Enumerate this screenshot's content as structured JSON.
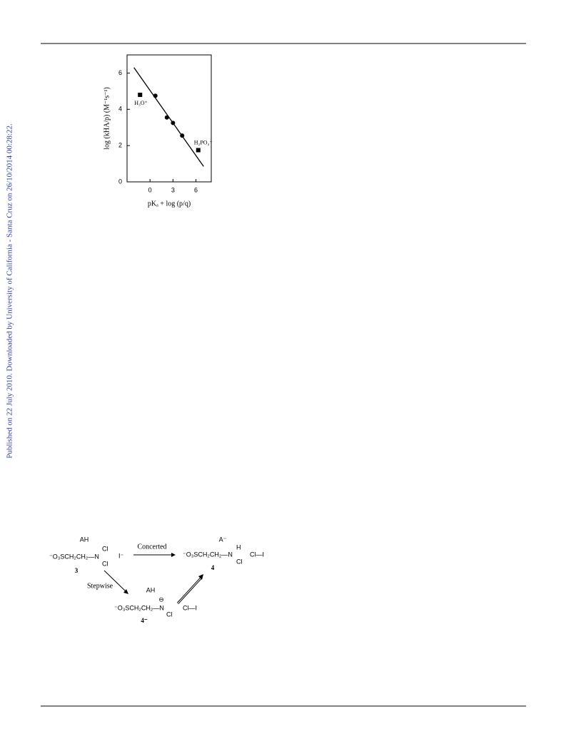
{
  "sidebar": "Published on 22 July 2010. Downloaded by University of California - Santa Cruz on 26/10/2014 00:28:22.",
  "chart_data": {
    "type": "scatter",
    "x_label": "pKₐ + log (p/q)",
    "y_label": "log (kHA/p) (M⁻¹s⁻¹)",
    "xlim": [
      -3,
      8
    ],
    "ylim": [
      0,
      7
    ],
    "xticks": [
      0,
      3,
      6
    ],
    "yticks": [
      0,
      2,
      4,
      6
    ],
    "series": [
      {
        "color": "#000000",
        "marker": "circle",
        "x": [
          0.7,
          2.2,
          3.0,
          4.2
        ],
        "values": [
          4.75,
          3.55,
          3.25,
          2.55
        ]
      },
      {
        "color": "#000000",
        "marker": "square",
        "x": [
          -1.3,
          6.3
        ],
        "values": [
          4.8,
          1.75
        ]
      }
    ],
    "fit_line": {
      "color": "#000000",
      "x": [
        -2.1,
        7.0
      ],
      "values": [
        6.3,
        0.85
      ]
    },
    "annotations": [
      "H₃O⁺",
      "H₂PO₄⁻"
    ]
  },
  "scheme": {
    "labels": [
      "AH",
      "⁻O₃SCH₂CH₂—N",
      "Cl",
      "Cl",
      "3",
      "I⁻",
      "Concerted",
      "A⁻",
      "⁻O₃SCH₂CH₂—N",
      "H",
      "Cl",
      "4",
      "Cl—I",
      "Stepwise",
      "AH",
      "⊖",
      "⁻O₃SCH₂CH₂—N",
      "Cl",
      "4⁻",
      "Cl—I"
    ]
  }
}
